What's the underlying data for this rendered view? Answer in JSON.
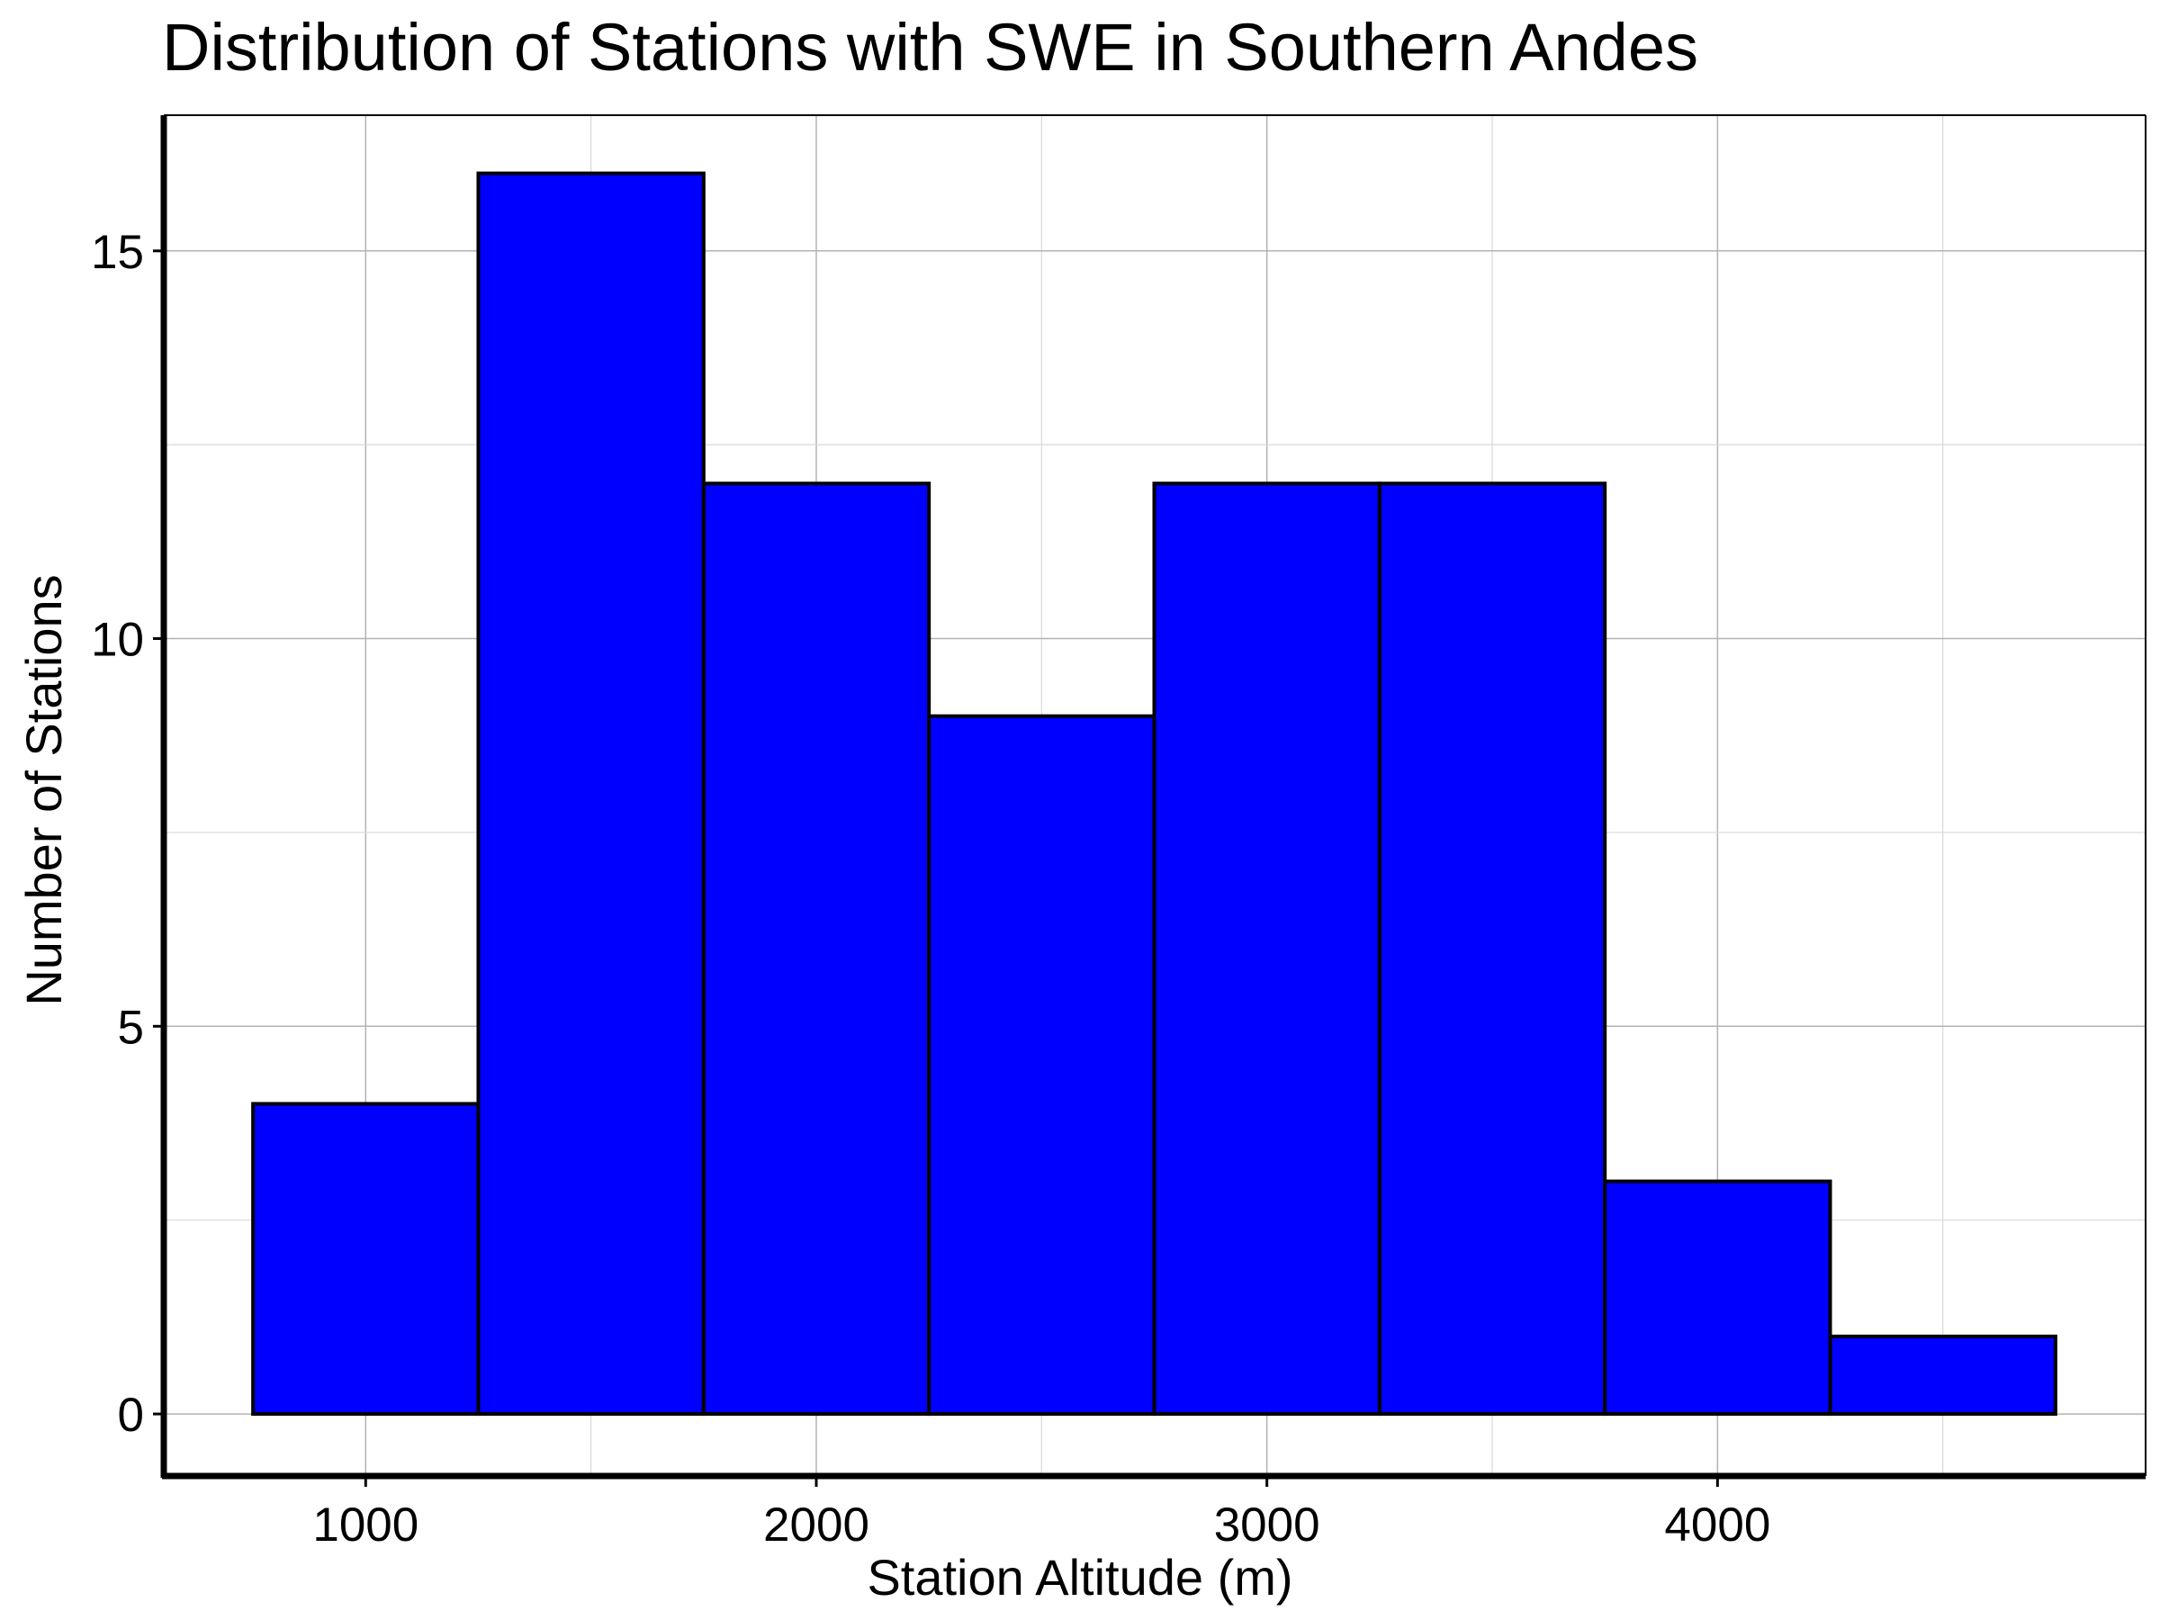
{
  "chart_data": {
    "type": "bar",
    "title": "Distribution of Stations with SWE in Southern Andes",
    "xlabel": "Station Altitude (m)",
    "ylabel": "Number of Stations",
    "bins": [
      {
        "start": 750,
        "end": 1250,
        "count": 4
      },
      {
        "start": 1250,
        "end": 1750,
        "count": 16
      },
      {
        "start": 1750,
        "end": 2250,
        "count": 12
      },
      {
        "start": 2250,
        "end": 2750,
        "count": 9
      },
      {
        "start": 2750,
        "end": 3250,
        "count": 12
      },
      {
        "start": 3250,
        "end": 3750,
        "count": 12
      },
      {
        "start": 3750,
        "end": 4250,
        "count": 3
      },
      {
        "start": 4250,
        "end": 4750,
        "count": 1
      }
    ],
    "xticks": [
      1000,
      2000,
      3000,
      4000
    ],
    "yticks": [
      0,
      5,
      10,
      15
    ],
    "xlim": [
      552,
      4950
    ],
    "ylim": [
      -0.8,
      16.75
    ],
    "grid": true,
    "bar_color": "#0000ff",
    "edge_color": "#000000"
  }
}
